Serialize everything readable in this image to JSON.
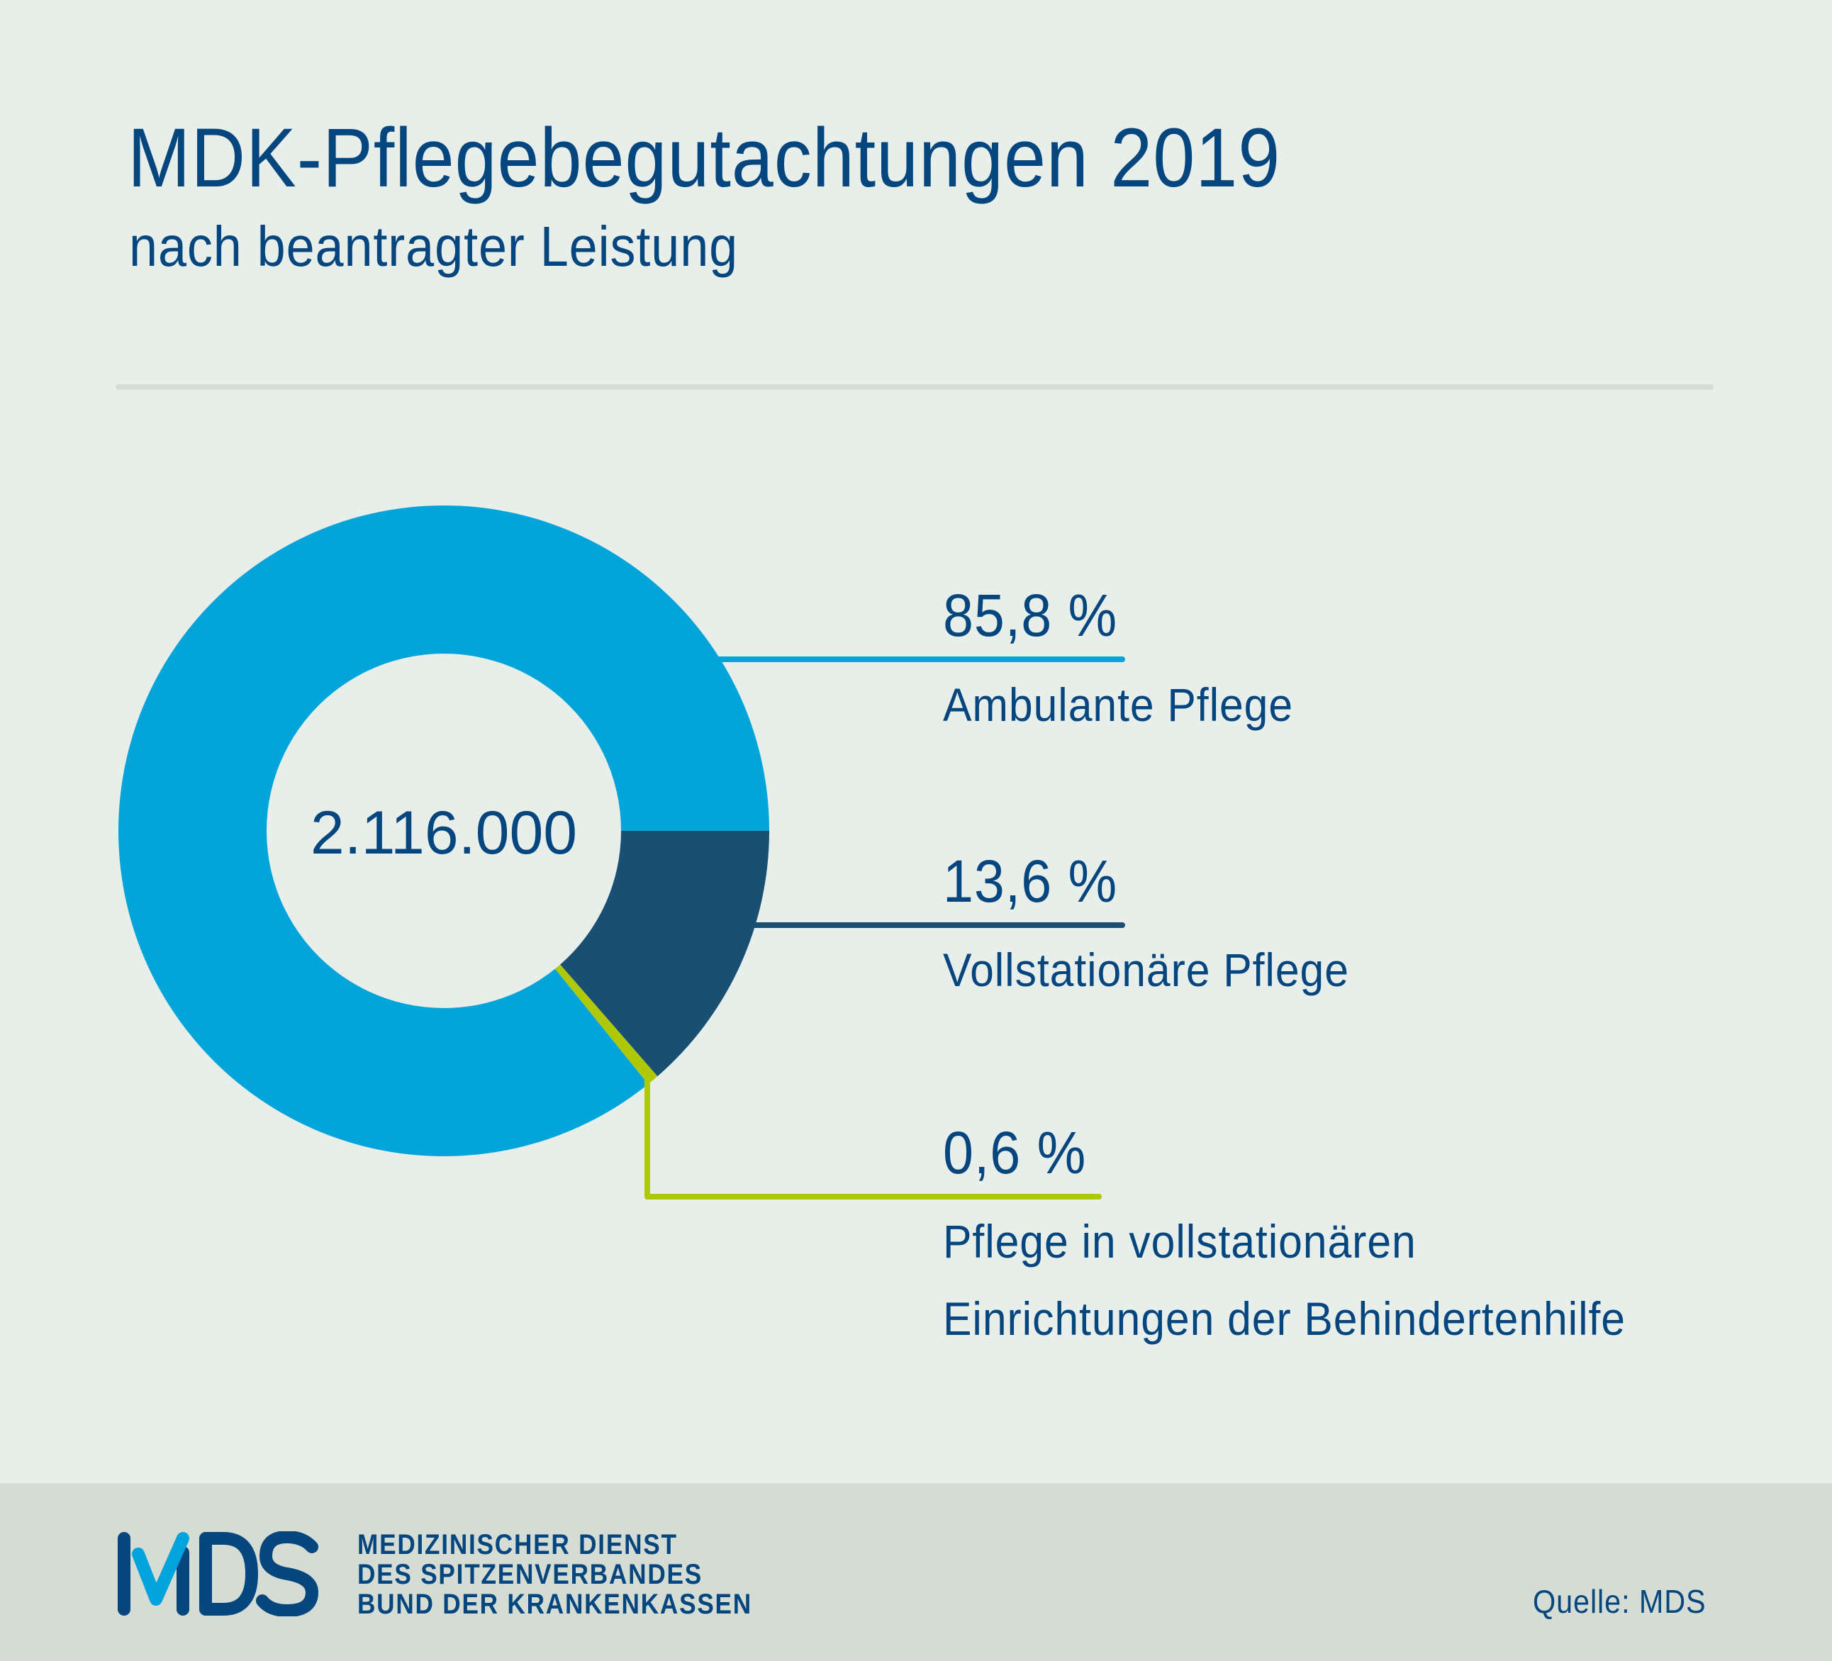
{
  "header": {
    "title": "MDK-Pflegebegutachtungen 2019",
    "subtitle": "nach beantragter Leistung"
  },
  "chart_data": {
    "type": "pie",
    "variant": "donut",
    "title": "MDK-Pflegebegutachtungen 2019",
    "subtitle": "nach beantragter Leistung",
    "center_label": "2.116.000",
    "total": 2116000,
    "unit": "%",
    "start": "3 o'clock, clockwise",
    "slices": [
      {
        "name": "Vollstationäre Pflege",
        "value": 13.6,
        "label": "13,6 %",
        "color": "#184f72"
      },
      {
        "name": "Pflege in vollstationären Einrichtungen der Behindertenhilfe",
        "value": 0.6,
        "label": "0,6 %",
        "color": "#afc808"
      },
      {
        "name": "Ambulante Pflege",
        "value": 85.8,
        "label": "85,8 %",
        "color": "#02a4d9"
      }
    ],
    "legend": [
      {
        "pct": "85,8 %",
        "lines": [
          "Ambulante Pflege"
        ],
        "color": "#02a4d9"
      },
      {
        "pct": "13,6 %",
        "lines": [
          "Vollstationäre Pflege"
        ],
        "color": "#184f72"
      },
      {
        "pct": "0,6 %",
        "lines": [
          "Pflege in vollstationären",
          "Einrichtungen der Behindertenhilfe"
        ],
        "color": "#afc808"
      }
    ],
    "legend_placement": "right"
  },
  "footer": {
    "logo_text": "MDS",
    "org_lines": [
      "MEDIZINISCHER DIENST",
      "DES SPITZENVERBANDES",
      "BUND DER KRANKENKASSEN"
    ],
    "source": "Quelle: MDS"
  },
  "colors": {
    "text": "#05467f",
    "background": "#e8eeea",
    "footer_background": "#d5dcd4",
    "separator": "#d5ddd5",
    "logo_accent": "#00a3dc"
  }
}
